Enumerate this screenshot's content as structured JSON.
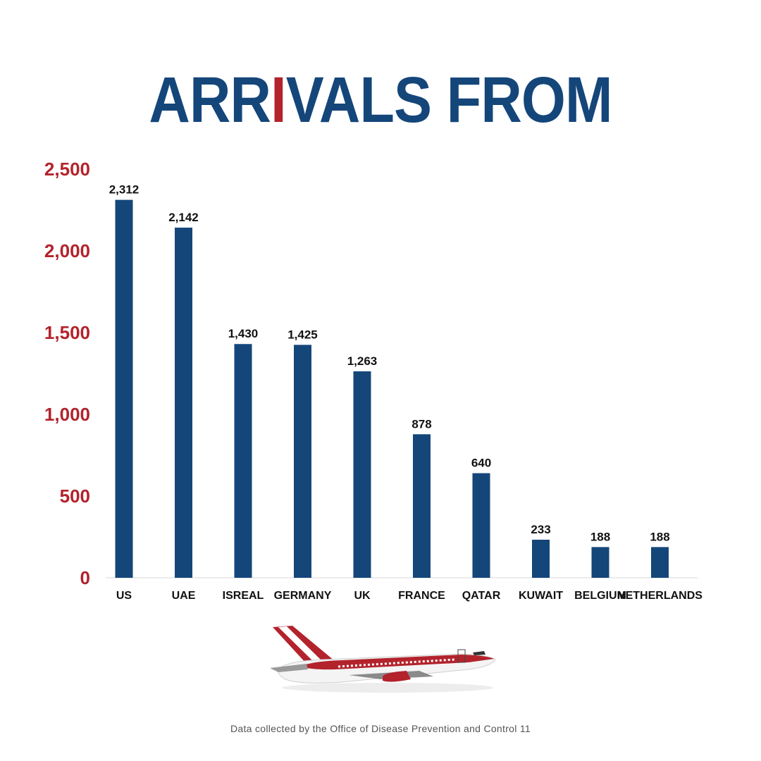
{
  "title": {
    "part1": "ARR",
    "accent": "I",
    "part2": "VALS FROM"
  },
  "source_note": "Data collected by the Office of Disease Prevention and Control 11",
  "colors": {
    "title": "#14467a",
    "title_accent": "#b3232c",
    "bar": "#14467a",
    "y_tick": "#b3232c",
    "label": "#111111"
  },
  "illustration": "airplane-red-white",
  "chart_data": {
    "type": "bar",
    "title": "ARRIVALS FROM",
    "categories": [
      "US",
      "UAE",
      "ISREAL",
      "GERMANY",
      "UK",
      "FRANCE",
      "QATAR",
      "KUWAIT",
      "BELGIUM",
      "NETHERLANDS"
    ],
    "values": [
      2312,
      2142,
      1430,
      1425,
      1263,
      878,
      640,
      233,
      188,
      188
    ],
    "value_labels": [
      "2,312",
      "2,142",
      "1,430",
      "1,425",
      "1,263",
      "878",
      "640",
      "233",
      "188",
      "188"
    ],
    "y_ticks": [
      0,
      500,
      1000,
      1500,
      2000,
      2500
    ],
    "y_tick_labels": [
      "0",
      "500",
      "1,000",
      "1,500",
      "2,000",
      "2,500"
    ],
    "ylim": [
      0,
      2500
    ],
    "xlabel": "",
    "ylabel": "",
    "grid": false,
    "legend": "none"
  }
}
